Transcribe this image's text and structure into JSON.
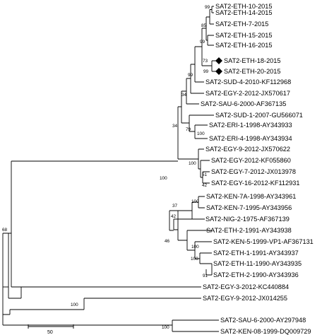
{
  "taxa": [
    "SAT2-ETH-10-2015",
    "SAT2-ETH-14-2015",
    "SAT2-ETH-7-2015",
    "SAT2-ETH-15-2015",
    "SAT2-ETH-16-2015",
    "SAT2-ETH-18-2015",
    "SAT2-ETH-20-2015",
    "SAT2-SUD-4-2010-KF112968",
    "SAT2-EGY-2-2012-JX570617",
    "SAT2-SAU-6-2000-AF367135",
    "SAT2-SUD-1-2007-GU566071",
    "SAT2-ERI-1-1998-AY343933",
    "SAT2-ERI-4-1998-AY343934",
    "SAT2-EGY-9-2012-JX570622",
    "SAT2-EGY-2012-KF055860",
    "SAT2-EGY-7-2012-JX013978",
    "SAT2-EGY-16-2012-KF112931",
    "SAT2-KEN-7A-1998-AY343961",
    "SAT2-KEN-7-1995-AY343956",
    "SAT2-NIG-2-1975-AF367139",
    "SAT2-ETH-2-1991-AY343938",
    "SAT2-KEN-5-1999-VP1-AF367131",
    "SAT2-ETH-1-1991-AY343937",
    "SAT2-ETH-11-1990-AY343935",
    "SAT2-ETH-2-1990-AY343936",
    "SAT2-EGY-3-2012-KC440884",
    "SAT2-EGY-9-2012-JX014255",
    "SAT2-SAU-6-2000-AY297948",
    "SAT2-KEN-08-1999-DQ009729"
  ],
  "highlighted_taxa_marker": "black-diamond",
  "bootstrap": {
    "b99_eth_top": "99",
    "b85": "85",
    "b99_eth_pair": "99",
    "b73": "73",
    "b99_sud": "99",
    "b34_a": "34",
    "b34_b": "34",
    "b79": "79",
    "b100_eri": "100",
    "b100_egy": "100",
    "b51": "51",
    "b42_egy": "42",
    "b100_main": "100",
    "b100_ken": "100",
    "b37": "37",
    "b42_nig": "42",
    "b46": "46",
    "b100_eth91": "100",
    "b100_eth90": "100",
    "b91": "91",
    "b68": "68",
    "b100_egy2012": "100",
    "b100_sau": "100"
  },
  "scale_bar": {
    "label": "50",
    "value": 50
  }
}
